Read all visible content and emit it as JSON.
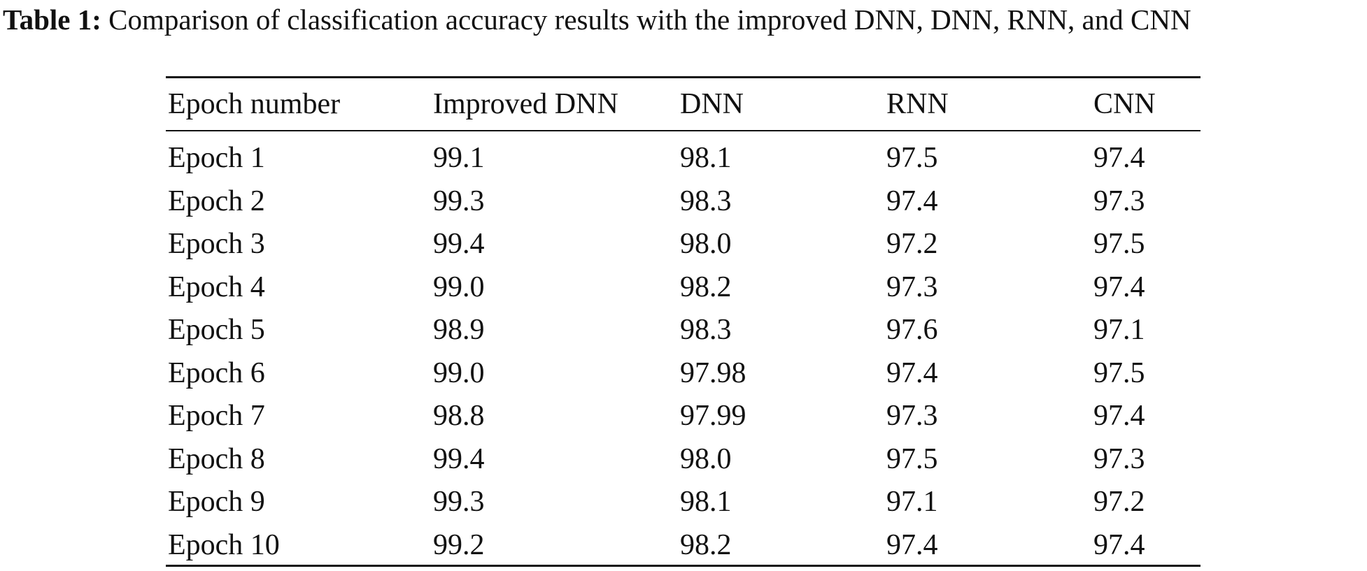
{
  "caption": {
    "label": "Table 1:",
    "text": "Comparison of classification accuracy results with the improved DNN, DNN, RNN, and CNN"
  },
  "table": {
    "header": [
      "Epoch number",
      "Improved DNN",
      "DNN",
      "RNN",
      "CNN"
    ],
    "rows": [
      [
        "Epoch 1",
        "99.1",
        "98.1",
        "97.5",
        "97.4"
      ],
      [
        "Epoch 2",
        "99.3",
        "98.3",
        "97.4",
        "97.3"
      ],
      [
        "Epoch 3",
        "99.4",
        "98.0",
        "97.2",
        "97.5"
      ],
      [
        "Epoch 4",
        "99.0",
        "98.2",
        "97.3",
        "97.4"
      ],
      [
        "Epoch 5",
        "98.9",
        "98.3",
        "97.6",
        "97.1"
      ],
      [
        "Epoch 6",
        "99.0",
        "97.98",
        "97.4",
        "97.5"
      ],
      [
        "Epoch 7",
        "98.8",
        "97.99",
        "97.3",
        "97.4"
      ],
      [
        "Epoch 8",
        "99.4",
        "98.0",
        "97.5",
        "97.3"
      ],
      [
        "Epoch 9",
        "99.3",
        "98.1",
        "97.1",
        "97.2"
      ],
      [
        "Epoch 10",
        "99.2",
        "98.2",
        "97.4",
        "97.4"
      ]
    ]
  }
}
